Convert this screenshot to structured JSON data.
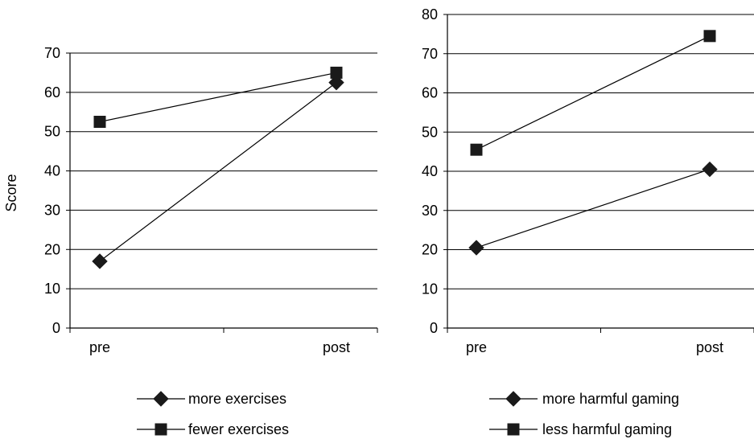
{
  "chart_data": [
    {
      "type": "line",
      "title": "",
      "xlabel": "",
      "ylabel": "Score",
      "categories": [
        "pre",
        "post"
      ],
      "ylim": [
        0,
        70
      ],
      "yticks": [
        0,
        10,
        20,
        30,
        40,
        50,
        60,
        70
      ],
      "grid": true,
      "legend_position": "bottom",
      "series": [
        {
          "name": "more exercises",
          "marker": "diamond",
          "values": [
            17,
            62.5
          ]
        },
        {
          "name": "fewer exercises",
          "marker": "square",
          "values": [
            52.5,
            65
          ]
        }
      ]
    },
    {
      "type": "line",
      "title": "",
      "xlabel": "",
      "ylabel": "",
      "categories": [
        "pre",
        "post"
      ],
      "ylim": [
        0,
        80
      ],
      "yticks": [
        0,
        10,
        20,
        30,
        40,
        50,
        60,
        70,
        80
      ],
      "grid": true,
      "legend_position": "bottom",
      "series": [
        {
          "name": "more harmful gaming",
          "marker": "diamond",
          "values": [
            20.5,
            40.5
          ]
        },
        {
          "name": "less harmful gaming",
          "marker": "square",
          "values": [
            45.5,
            74.5
          ]
        }
      ]
    }
  ],
  "colors": {
    "line": "#000000",
    "marker": "#1a1a1a",
    "grid": "#000000",
    "background": "#ffffff"
  }
}
